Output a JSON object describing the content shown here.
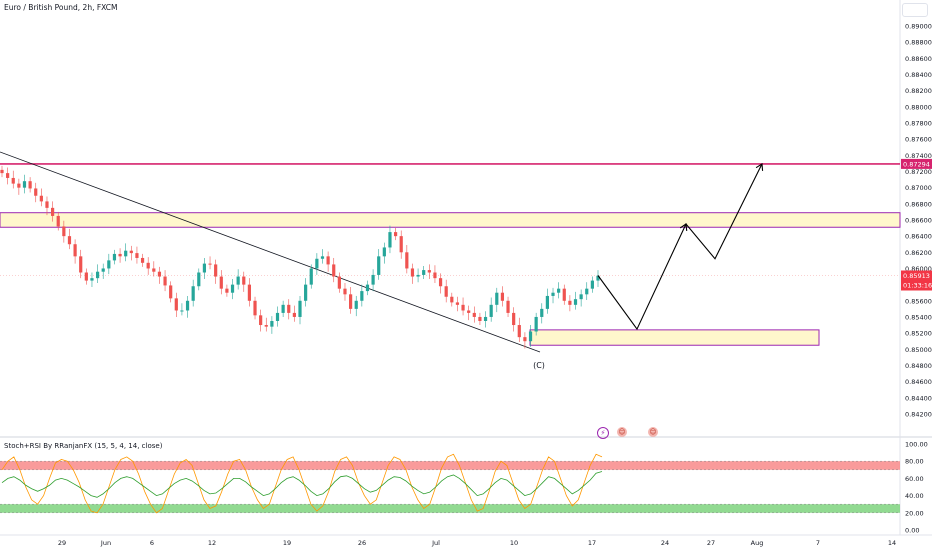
{
  "header": {
    "symbol_title": "Euro / British Pound, 2h, FXCM"
  },
  "indicator": {
    "title": "Stoch+RSI By RRanjanFX (15, 5, 4, 14, close)",
    "ticks": [
      "100.00",
      "80.00",
      "60.00",
      "40.00",
      "20.00",
      "0.00"
    ]
  },
  "price_axis": {
    "ticks": [
      "0.89000",
      "0.88800",
      "0.88600",
      "0.88400",
      "0.88200",
      "0.88000",
      "0.87800",
      "0.87600",
      "0.87400",
      "0.87200",
      "0.87000",
      "0.86800",
      "0.86600",
      "0.86400",
      "0.86200",
      "0.86000",
      "0.85800",
      "0.85600",
      "0.85400",
      "0.85200",
      "0.85000",
      "0.84800",
      "0.84600",
      "0.84400",
      "0.84200"
    ],
    "target_label": "0.87294",
    "current_label": "0.85913",
    "countdown_label": "01:33:16"
  },
  "time_axis": {
    "ticks": [
      "29",
      "Jun",
      "6",
      "12",
      "19",
      "26",
      "Jul",
      "10",
      "17",
      "24",
      "27",
      "Aug",
      "7",
      "14"
    ]
  },
  "annotations": {
    "wave_label": "(C)"
  },
  "colors": {
    "up_candle": "#26a69a",
    "down_candle": "#ef5350",
    "target_line": "#d6246e",
    "zone_fill": "#fff7cc",
    "zone_border": "#9c27b0",
    "stoch_line": "#ff9800",
    "rsi_line": "#2e9e2e",
    "ob_band": "#f88a8a",
    "os_band": "#7ed47e"
  },
  "chart_data": [
    {
      "type": "candlestick",
      "title": "Euro / British Pound, 2h, FXCM",
      "ylim": [
        0.841,
        0.8905
      ],
      "x_ticks": [
        "29",
        "Jun",
        "6",
        "12",
        "19",
        "26",
        "Jul",
        "10",
        "17",
        "24",
        "27",
        "Aug",
        "7",
        "14"
      ],
      "close_path": [
        0.8718,
        0.8712,
        0.8705,
        0.87,
        0.8708,
        0.8699,
        0.869,
        0.8683,
        0.8675,
        0.8665,
        0.8652,
        0.864,
        0.863,
        0.8615,
        0.8595,
        0.8585,
        0.8588,
        0.8596,
        0.86,
        0.861,
        0.8618,
        0.8615,
        0.8622,
        0.8619,
        0.8613,
        0.8607,
        0.86,
        0.8596,
        0.859,
        0.8579,
        0.8563,
        0.8548,
        0.8548,
        0.856,
        0.8578,
        0.8595,
        0.8606,
        0.8605,
        0.859,
        0.8575,
        0.857,
        0.858,
        0.859,
        0.858,
        0.856,
        0.8542,
        0.853,
        0.8528,
        0.8535,
        0.8545,
        0.8555,
        0.8545,
        0.854,
        0.856,
        0.858,
        0.86,
        0.8612,
        0.8615,
        0.8605,
        0.859,
        0.8575,
        0.8568,
        0.855,
        0.856,
        0.8572,
        0.858,
        0.8592,
        0.8615,
        0.8626,
        0.8645,
        0.864,
        0.862,
        0.86,
        0.859,
        0.8592,
        0.8598,
        0.8595,
        0.8588,
        0.8578,
        0.8565,
        0.8558,
        0.8555,
        0.8548,
        0.8545,
        0.854,
        0.8535,
        0.854,
        0.8555,
        0.857,
        0.856,
        0.8545,
        0.853,
        0.8515,
        0.851,
        0.8522,
        0.854,
        0.855,
        0.8566,
        0.857,
        0.8575,
        0.856,
        0.8555,
        0.8562,
        0.8568,
        0.8575,
        0.8585,
        0.8591
      ],
      "horizontal_levels": [
        {
          "name": "target",
          "value": 0.87294
        },
        {
          "name": "current",
          "value": 0.85913
        }
      ],
      "zones": [
        {
          "name": "resistance",
          "from": 0.8651,
          "to": 0.8669
        },
        {
          "name": "support",
          "from": 0.8505,
          "to": 0.8524
        }
      ],
      "projection_path": [
        0.85913,
        0.8525,
        0.8655,
        0.8612,
        0.87294
      ]
    },
    {
      "type": "line",
      "title": "Stoch+RSI By RRanjanFX (15, 5, 4, 14, close)",
      "ylim": [
        0,
        100
      ],
      "bands": [
        {
          "from": 70,
          "to": 80
        },
        {
          "from": 20,
          "to": 30
        }
      ],
      "series": [
        {
          "values": [
            70,
            80,
            85,
            70,
            50,
            35,
            30,
            40,
            60,
            78,
            82,
            80,
            70,
            55,
            35,
            22,
            20,
            30,
            50,
            70,
            82,
            85,
            80,
            65,
            45,
            30,
            20,
            25,
            45,
            65,
            78,
            82,
            75,
            55,
            35,
            25,
            28,
            45,
            65,
            80,
            82,
            70,
            50,
            35,
            25,
            30,
            50,
            70,
            82,
            85,
            70,
            50,
            30,
            22,
            28,
            45,
            68,
            82,
            85,
            75,
            55,
            40,
            30,
            35,
            55,
            75,
            85,
            82,
            70,
            50,
            35,
            25,
            30,
            50,
            72,
            85,
            88,
            75,
            55,
            35,
            22,
            25,
            45,
            68,
            80,
            75,
            55,
            35,
            25,
            30,
            50,
            70,
            85,
            80,
            60,
            40,
            28,
            35,
            55,
            75,
            88,
            85
          ]
        },
        {
          "values": [
            55,
            60,
            62,
            58,
            52,
            48,
            45,
            48,
            52,
            58,
            60,
            58,
            54,
            50,
            45,
            40,
            38,
            42,
            48,
            55,
            60,
            62,
            60,
            55,
            50,
            45,
            40,
            42,
            48,
            54,
            58,
            60,
            57,
            52,
            46,
            42,
            43,
            48,
            54,
            60,
            60,
            56,
            50,
            45,
            40,
            42,
            48,
            55,
            60,
            62,
            58,
            52,
            45,
            40,
            42,
            48,
            56,
            62,
            63,
            60,
            54,
            48,
            44,
            46,
            52,
            58,
            62,
            61,
            57,
            51,
            46,
            42,
            44,
            50,
            57,
            62,
            64,
            60,
            54,
            47,
            40,
            42,
            48,
            55,
            60,
            58,
            52,
            46,
            40,
            42,
            48,
            55,
            62,
            60,
            54,
            48,
            42,
            46,
            52,
            58,
            66,
            68
          ]
        }
      ]
    }
  ]
}
